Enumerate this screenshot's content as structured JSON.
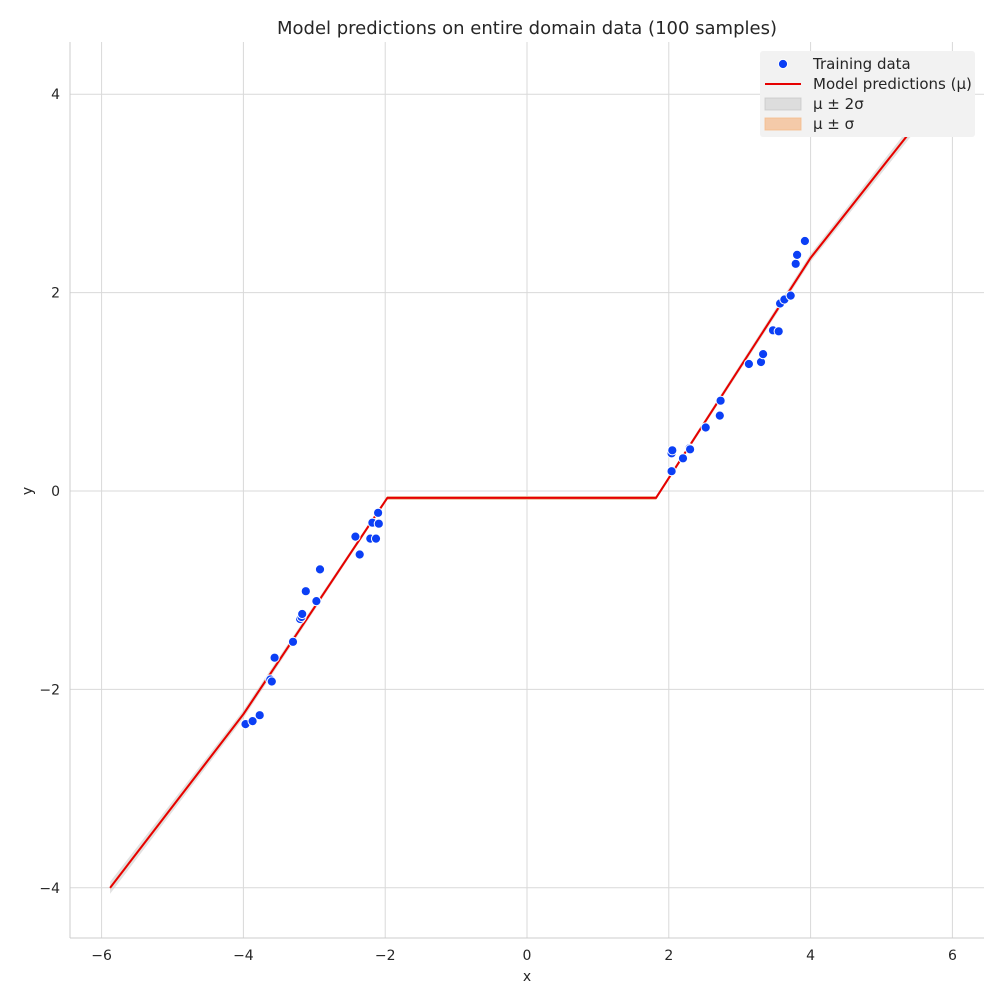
{
  "chart_data": {
    "type": "line",
    "title": "Model predictions on entire domain data (100 samples)",
    "xlabel": "x",
    "ylabel": "y",
    "xlim": [
      -6.45,
      6.45
    ],
    "ylim": [
      -4.5,
      4.5
    ],
    "xticks": [
      -6,
      -4,
      -2,
      0,
      2,
      4,
      6
    ],
    "yticks": [
      -4,
      -2,
      0,
      2,
      4
    ],
    "xtick_labels": [
      "−6",
      "−4",
      "−2",
      "0",
      "2",
      "4",
      "6"
    ],
    "ytick_labels": [
      "−4",
      "−2",
      "0",
      "2",
      "4"
    ],
    "grid": true,
    "legend_position": "top-right",
    "colors": {
      "points": "#0b3ff5",
      "prediction": "#e60000",
      "band_2sigma": "#c8c8c8",
      "band_1sigma": "#f5b98a",
      "grid": "#d9d9d9",
      "legend_bg": "#f2f2f2"
    },
    "legend": [
      {
        "label": "Training data",
        "kind": "point"
      },
      {
        "label": "Model predictions (μ)",
        "kind": "line"
      },
      {
        "label": "μ ± 2σ",
        "kind": "band2"
      },
      {
        "label": "μ ± σ",
        "kind": "band1"
      }
    ],
    "series": [
      {
        "name": "Training data",
        "kind": "scatter",
        "points": [
          [
            -3.97,
            -2.35
          ],
          [
            -3.87,
            -2.32
          ],
          [
            -3.77,
            -2.26
          ],
          [
            -3.62,
            -1.9
          ],
          [
            -3.6,
            -1.92
          ],
          [
            -3.56,
            -1.68
          ],
          [
            -3.3,
            -1.52
          ],
          [
            -3.2,
            -1.29
          ],
          [
            -3.18,
            -1.27
          ],
          [
            -3.17,
            -1.24
          ],
          [
            -3.12,
            -1.01
          ],
          [
            -2.97,
            -1.11
          ],
          [
            -2.92,
            -0.79
          ],
          [
            -2.42,
            -0.46
          ],
          [
            -2.36,
            -0.64
          ],
          [
            -2.21,
            -0.48
          ],
          [
            -2.18,
            -0.32
          ],
          [
            -2.13,
            -0.48
          ],
          [
            -2.09,
            -0.33
          ],
          [
            -2.1,
            -0.22
          ],
          [
            2.04,
            0.2
          ],
          [
            2.04,
            0.38
          ],
          [
            2.05,
            0.41
          ],
          [
            2.2,
            0.33
          ],
          [
            2.29,
            0.43
          ],
          [
            2.3,
            0.42
          ],
          [
            2.52,
            0.64
          ],
          [
            2.72,
            0.76
          ],
          [
            2.73,
            0.91
          ],
          [
            3.13,
            1.28
          ],
          [
            3.3,
            1.3
          ],
          [
            3.33,
            1.38
          ],
          [
            3.47,
            1.62
          ],
          [
            3.55,
            1.61
          ],
          [
            3.57,
            1.89
          ],
          [
            3.63,
            1.93
          ],
          [
            3.72,
            1.97
          ],
          [
            3.79,
            2.29
          ],
          [
            3.81,
            2.38
          ],
          [
            3.92,
            2.52
          ]
        ]
      },
      {
        "name": "Model predictions (μ)",
        "kind": "line",
        "points": [
          [
            -5.88,
            -4.0
          ],
          [
            -4.0,
            -2.25
          ],
          [
            -1.97,
            -0.07
          ],
          [
            1.82,
            -0.07
          ],
          [
            4.0,
            2.35
          ],
          [
            5.88,
            4.05
          ]
        ],
        "band_1sigma": [
          0.02,
          0.02,
          0.02,
          0.02,
          0.02,
          0.02
        ],
        "band_2sigma": [
          0.06,
          0.04,
          0.02,
          0.02,
          0.04,
          0.06
        ]
      }
    ]
  }
}
